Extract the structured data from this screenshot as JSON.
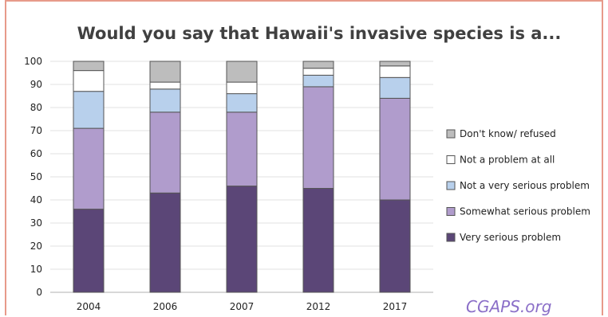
{
  "chart_data": {
    "type": "bar",
    "stacked": true,
    "title": "Would you say that Hawaii's invasive species is a...",
    "categories": [
      "2004",
      "2006",
      "2007",
      "2012",
      "2017"
    ],
    "ylim": [
      0,
      100
    ],
    "yticks": [
      0,
      10,
      20,
      30,
      40,
      50,
      60,
      70,
      80,
      90,
      100
    ],
    "grid": true,
    "legend": "right",
    "series": [
      {
        "name": "Very serious problem",
        "color": "#5b4677",
        "values": [
          36,
          43,
          46,
          45,
          40
        ]
      },
      {
        "name": "Somewhat serious problem",
        "color": "#b09ccc",
        "values": [
          35,
          35,
          32,
          44,
          44
        ]
      },
      {
        "name": "Not a very serious problem",
        "color": "#b8d0ec",
        "values": [
          16,
          10,
          8,
          5,
          9
        ]
      },
      {
        "name": "Not a problem at all",
        "color": "#ffffff",
        "values": [
          9,
          3,
          5,
          3,
          5
        ]
      },
      {
        "name": "Don't know/ refused",
        "color": "#bdbdbd",
        "values": [
          4,
          9,
          9,
          3,
          2
        ]
      }
    ]
  },
  "watermark": "CGAPS.org"
}
